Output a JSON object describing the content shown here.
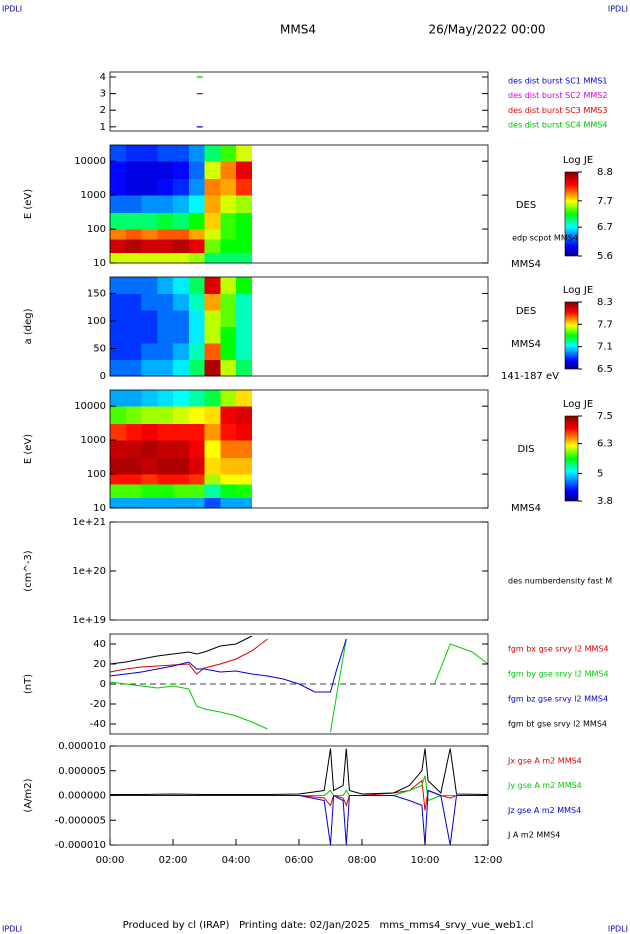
{
  "header": {
    "left_logo": "IPDLI",
    "right_logo": "IPDLI",
    "spacecraft": "MMS4",
    "date": "26/May/2022 00:00"
  },
  "footer": {
    "text": "Produced by cl (IRAP)   Printing date: 02/Jan/2025   mms_mms4_srvy_vue_web1.cl",
    "left_logo": "IPDLI",
    "right_logo": "IPDLI"
  },
  "chart_data": [
    {
      "type": "scatter",
      "xlim": [
        0,
        12
      ],
      "ylim": [
        0.75,
        4.3
      ],
      "yticks": [
        1,
        2,
        3,
        4
      ],
      "series": [
        {
          "name": "des dist burst SC1 MMS1",
          "color": "#0000cc",
          "x": [
            2.85
          ],
          "values": [
            1
          ]
        },
        {
          "name": "des dist burst SC2 MMS2",
          "color": "#cc00cc",
          "x": [],
          "values": []
        },
        {
          "name": "des dist burst SC3 MMS3",
          "color": "#dd0000",
          "x": [
            2.85
          ],
          "values": [
            3
          ]
        },
        {
          "name": "des dist burst SC4 MMS4",
          "color": "#00bb00",
          "x": [
            2.85
          ],
          "values": [
            4
          ]
        }
      ]
    },
    {
      "type": "heatmap",
      "ylabel": "E (eV)",
      "ylog": true,
      "xlim": [
        0,
        12
      ],
      "ylim": [
        10,
        30000
      ],
      "yticks": [
        10,
        100,
        1000,
        10000
      ],
      "x": [
        0,
        0.5,
        1,
        1.5,
        2,
        2.5,
        3,
        3.5,
        4,
        4.5
      ],
      "y": [
        10,
        20,
        50,
        100,
        300,
        1000,
        3000,
        10000,
        30000
      ],
      "z": [
        [
          7.6,
          7.6,
          7.6,
          7.6,
          7.6,
          7.5,
          7.0,
          7.0,
          7.0
        ],
        [
          8.5,
          8.6,
          8.5,
          8.5,
          8.6,
          8.4,
          7.4,
          7.2,
          7.2
        ],
        [
          8.0,
          8.1,
          8.0,
          8.1,
          8.1,
          7.9,
          7.6,
          7.3,
          7.2
        ],
        [
          7.0,
          7.0,
          7.0,
          7.1,
          7.0,
          7.2,
          7.8,
          7.3,
          7.2
        ],
        [
          6.3,
          6.3,
          6.4,
          6.4,
          6.5,
          6.7,
          7.9,
          7.6,
          7.5
        ],
        [
          6.0,
          5.9,
          5.9,
          6.0,
          6.1,
          6.4,
          8.0,
          7.9,
          8.2
        ],
        [
          6.0,
          5.9,
          5.9,
          5.9,
          6.0,
          6.3,
          7.6,
          8.0,
          8.4
        ],
        [
          6.2,
          6.1,
          6.1,
          6.2,
          6.2,
          6.4,
          7.0,
          7.3,
          7.6
        ]
      ],
      "zlim": [
        5.6,
        8.8
      ],
      "zticks": [
        5.6,
        6.7,
        7.7,
        8.8
      ],
      "colorbar_title": "Log JE",
      "annotations": [
        "DES",
        "edp scpot MMS4",
        "MMS4"
      ]
    },
    {
      "type": "heatmap",
      "ylabel": "a (deg)",
      "xlim": [
        0,
        12
      ],
      "ylim": [
        0,
        180
      ],
      "yticks": [
        0,
        50,
        100,
        150
      ],
      "x": [
        0,
        0.5,
        1,
        1.5,
        2,
        2.5,
        3,
        3.5,
        4,
        4.5
      ],
      "y": [
        0,
        30,
        60,
        90,
        120,
        150,
        180
      ],
      "z": [
        [
          6.9,
          6.9,
          7.0,
          7.0,
          7.1,
          7.3,
          8.2,
          7.6,
          7.3
        ],
        [
          6.8,
          6.8,
          6.9,
          6.9,
          7.0,
          7.2,
          7.9,
          7.4,
          7.2
        ],
        [
          6.8,
          6.8,
          6.8,
          6.9,
          6.9,
          7.1,
          7.6,
          7.4,
          7.2
        ],
        [
          6.8,
          6.8,
          6.8,
          6.9,
          6.9,
          7.1,
          7.6,
          7.5,
          7.2
        ],
        [
          6.8,
          6.8,
          6.9,
          6.9,
          7.0,
          7.2,
          7.8,
          7.5,
          7.2
        ],
        [
          6.9,
          6.9,
          6.9,
          7.0,
          7.1,
          7.3,
          8.1,
          7.6,
          7.4
        ]
      ],
      "zlim": [
        6.5,
        8.3
      ],
      "zticks": [
        6.5,
        7.1,
        7.7,
        8.3
      ],
      "colorbar_title": "Log JE",
      "annotations": [
        "DES",
        "MMS4",
        "141-187 eV"
      ]
    },
    {
      "type": "heatmap",
      "ylabel": "E (eV)",
      "ylog": true,
      "xlim": [
        0,
        12
      ],
      "ylim": [
        10,
        30000
      ],
      "yticks": [
        10,
        100,
        1000,
        10000
      ],
      "x": [
        0,
        0.5,
        1,
        1.5,
        2,
        2.5,
        3,
        3.5,
        4,
        4.5
      ],
      "y": [
        10,
        20,
        50,
        100,
        300,
        1000,
        3000,
        10000,
        30000
      ],
      "z": [
        [
          4.8,
          4.8,
          4.8,
          4.8,
          4.8,
          4.8,
          4.5,
          4.8,
          4.8
        ],
        [
          5.8,
          5.8,
          5.7,
          5.7,
          5.8,
          5.8,
          5.3,
          5.6,
          5.7
        ],
        [
          6.9,
          6.9,
          6.8,
          6.9,
          6.9,
          6.8,
          6.0,
          6.2,
          6.2
        ],
        [
          7.3,
          7.3,
          7.2,
          7.3,
          7.3,
          7.1,
          6.3,
          6.4,
          6.4
        ],
        [
          7.2,
          7.2,
          7.3,
          7.2,
          7.2,
          7.0,
          6.2,
          6.6,
          6.6
        ],
        [
          6.8,
          6.9,
          7.0,
          6.9,
          6.9,
          6.9,
          6.5,
          6.9,
          7.0
        ],
        [
          5.8,
          5.9,
          6.0,
          6.0,
          6.1,
          6.2,
          6.3,
          7.0,
          7.1
        ],
        [
          4.8,
          4.8,
          4.9,
          5.0,
          5.1,
          5.3,
          5.5,
          6.0,
          6.3
        ]
      ],
      "zlim": [
        3.8,
        7.5
      ],
      "zticks": [
        3.8,
        5.0,
        6.3,
        7.5
      ],
      "colorbar_title": "Log JE",
      "annotations": [
        "DIS",
        "MMS4"
      ]
    },
    {
      "type": "line",
      "ylabel": "(cm^-3)",
      "ylog": true,
      "xlim": [
        0,
        12
      ],
      "ylim": [
        1e+19,
        1e+21
      ],
      "yticks": [
        {
          "value": 1e+19,
          "label": "1e+19"
        },
        {
          "value": 1e+20,
          "label": "1e+20"
        },
        {
          "value": 1e+21,
          "label": "1e+21"
        }
      ],
      "x": [],
      "series": [
        {
          "name": "des numberdensity fast M",
          "color": "#000000",
          "values": []
        }
      ]
    },
    {
      "type": "line",
      "ylabel": "(nT)",
      "xlim": [
        0,
        12
      ],
      "ylim": [
        -50,
        50
      ],
      "yticks": [
        -40,
        -20,
        0,
        20,
        40
      ],
      "reference_line": 0,
      "x": [
        0,
        0.5,
        1,
        1.5,
        2,
        2.5,
        2.75,
        3,
        3.5,
        4,
        4.5,
        5,
        5.5,
        6,
        6.5,
        7,
        7.2,
        7.5,
        8,
        8.8,
        9,
        10,
        10.3,
        10.8,
        11.5,
        12
      ],
      "series": [
        {
          "name": "fgm bx gse srvy l2 MMS4",
          "color": "#dd0000",
          "values": [
            12,
            15,
            17,
            18,
            19,
            20,
            10,
            16,
            20,
            25,
            33,
            45,
            null,
            null,
            null,
            null,
            null,
            null,
            null,
            null,
            null,
            null,
            null,
            null,
            null,
            null
          ]
        },
        {
          "name": "fgm by gse srvy l2 MMS4",
          "color": "#00cc00",
          "values": [
            2,
            0,
            -2,
            -4,
            -2,
            -5,
            -22,
            -25,
            -28,
            -32,
            -38,
            -45,
            null,
            null,
            null,
            -48,
            -10,
            45,
            null,
            null,
            null,
            null,
            0,
            40,
            32,
            20
          ]
        },
        {
          "name": "fgm bz gse srvy l2 MMS4",
          "color": "#0000dd",
          "values": [
            8,
            10,
            12,
            15,
            18,
            22,
            15,
            15,
            12,
            13,
            10,
            8,
            5,
            0,
            -8,
            -8,
            15,
            45,
            null,
            null,
            null,
            null,
            null,
            null,
            null,
            null
          ]
        },
        {
          "name": "fgm bt gse srvy l2 MMS4",
          "color": "#000000",
          "values": [
            20,
            22,
            25,
            28,
            30,
            32,
            30,
            32,
            38,
            40,
            48,
            null,
            null,
            null,
            null,
            null,
            null,
            null,
            null,
            null,
            null,
            null,
            null,
            null,
            null,
            null
          ]
        }
      ]
    },
    {
      "type": "line",
      "ylabel": "(A/m2)",
      "xlim": [
        0,
        12
      ],
      "ylim": [
        -1e-05,
        1e-05
      ],
      "yticks": [
        {
          "value": -1e-05,
          "label": "-0.000010"
        },
        {
          "value": -5e-06,
          "label": "-0.000005"
        },
        {
          "value": 0,
          "label": "0.000000"
        },
        {
          "value": 5e-06,
          "label": "0.000005"
        },
        {
          "value": 1e-05,
          "label": "0.000010"
        }
      ],
      "xticks": [
        {
          "value": 0,
          "label": "00:00"
        },
        {
          "value": 2,
          "label": "02:00"
        },
        {
          "value": 4,
          "label": "04:00"
        },
        {
          "value": 6,
          "label": "06:00"
        },
        {
          "value": 8,
          "label": "08:00"
        },
        {
          "value": 10,
          "label": "10:00"
        },
        {
          "value": 12,
          "label": "12:00"
        }
      ],
      "x": [
        0,
        1,
        2,
        3,
        4,
        5,
        6,
        6.8,
        7.0,
        7.1,
        7.4,
        7.5,
        7.6,
        8,
        9,
        9.5,
        9.9,
        10.0,
        10.1,
        10.5,
        10.8,
        11,
        12
      ],
      "series": [
        {
          "name": "Jx gse A m2 MMS4",
          "color": "#dd0000",
          "values": [
            0,
            0,
            0,
            0,
            0,
            0,
            0,
            -5e-07,
            -2e-06,
            0,
            -5e-07,
            -2e-06,
            0,
            0,
            5e-07,
            1e-06,
            3e-06,
            -3e-06,
            1e-06,
            0,
            -5e-07,
            0,
            0
          ]
        },
        {
          "name": "Jy gse A m2 MMS4",
          "color": "#00cc00",
          "values": [
            0,
            0,
            0,
            0,
            0,
            0,
            0,
            0,
            1e-06,
            0,
            0,
            1e-06,
            0,
            0,
            0,
            1e-06,
            2e-06,
            4e-06,
            -1e-06,
            0,
            0,
            0,
            0
          ]
        },
        {
          "name": "Jz gse A m2 MMS4",
          "color": "#0000dd",
          "values": [
            0,
            0,
            0,
            0,
            0,
            0,
            0,
            -1e-06,
            -1e-05,
            0,
            -1e-06,
            -1e-05,
            0,
            0,
            0,
            -1e-06,
            -2e-06,
            -1e-05,
            1e-06,
            0,
            -1e-05,
            0,
            0
          ]
        },
        {
          "name": "J A m2 MMS4",
          "color": "#000000",
          "values": [
            2e-07,
            2e-07,
            3e-07,
            2e-07,
            2e-07,
            2e-07,
            3e-07,
            1e-06,
            9.5e-06,
            1e-06,
            2e-06,
            9.5e-06,
            1e-06,
            3e-07,
            5e-07,
            2e-06,
            5e-06,
            9.5e-06,
            3e-06,
            5e-07,
            9.5e-06,
            3e-07,
            2e-07
          ]
        }
      ]
    }
  ]
}
